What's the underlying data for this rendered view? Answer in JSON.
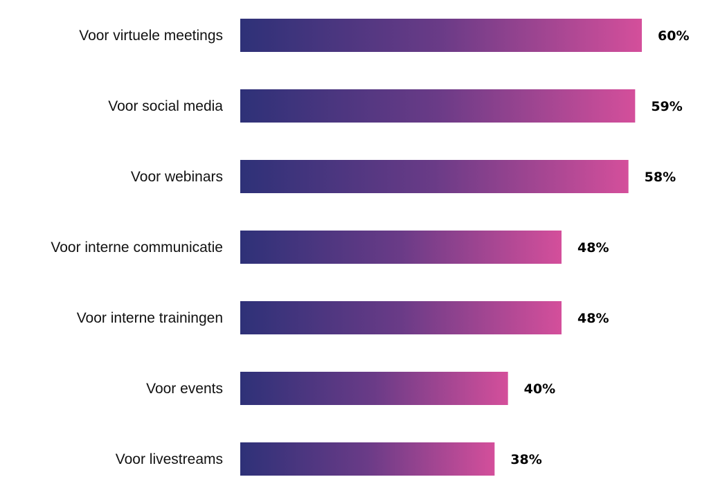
{
  "chart_data": {
    "type": "bar",
    "orientation": "horizontal",
    "title": "",
    "xlabel": "",
    "ylabel": "",
    "xlim": [
      0,
      60
    ],
    "grid": false,
    "legend": "none",
    "categories": [
      "Voor virtuele meetings",
      "Voor social media",
      "Voor webinars",
      "Voor interne communicatie",
      "Voor interne trainingen",
      "Voor events",
      "Voor livestreams"
    ],
    "values": [
      60,
      59,
      58,
      48,
      48,
      40,
      38
    ],
    "value_labels": [
      "60%",
      "59%",
      "58%",
      "48%",
      "48%",
      "40%",
      "38%"
    ],
    "unit": "%",
    "colors": {
      "gradient_start": "#2e3178",
      "gradient_mid": "#6a3b87",
      "gradient_end": "#d44f9b",
      "label_text": "#111111",
      "value_text": "#000000"
    }
  }
}
